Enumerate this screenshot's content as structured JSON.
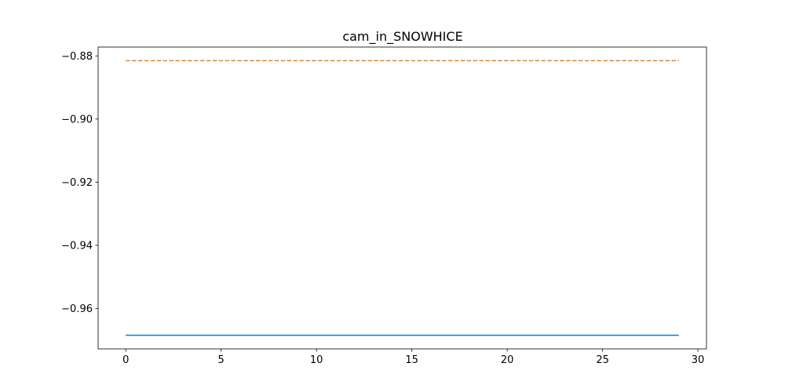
{
  "chart_data": {
    "type": "line",
    "title": "cam_in_SNOWHICE",
    "xlabel": "",
    "ylabel": "",
    "xlim": [
      -1.45,
      30.45
    ],
    "ylim": [
      -0.9728,
      -0.8772
    ],
    "x_ticks": [
      0,
      5,
      10,
      15,
      20,
      25,
      30
    ],
    "x_tick_labels": [
      "0",
      "5",
      "10",
      "15",
      "20",
      "25",
      "30"
    ],
    "y_ticks": [
      -0.96,
      -0.94,
      -0.92,
      -0.9,
      -0.88
    ],
    "y_tick_labels": [
      "−0.96",
      "−0.94",
      "−0.92",
      "−0.90",
      "−0.88"
    ],
    "grid": false,
    "legend": "none",
    "series": [
      {
        "color": "#1f77b4",
        "style": "solid",
        "x": [
          0,
          1,
          2,
          3,
          4,
          5,
          6,
          7,
          8,
          9,
          10,
          11,
          12,
          13,
          14,
          15,
          16,
          17,
          18,
          19,
          20,
          21,
          22,
          23,
          24,
          25,
          26,
          27,
          28,
          29
        ],
        "y": [
          -0.9685,
          -0.9685,
          -0.9685,
          -0.9685,
          -0.9685,
          -0.9685,
          -0.9685,
          -0.9685,
          -0.9685,
          -0.9685,
          -0.9685,
          -0.9685,
          -0.9685,
          -0.9685,
          -0.9685,
          -0.9685,
          -0.9685,
          -0.9685,
          -0.9685,
          -0.9685,
          -0.9685,
          -0.9685,
          -0.9685,
          -0.9685,
          -0.9685,
          -0.9685,
          -0.9685,
          -0.9685,
          -0.9685,
          -0.9685
        ]
      },
      {
        "color": "#ff7f0e",
        "style": "dashed",
        "x": [
          0,
          1,
          2,
          3,
          4,
          5,
          6,
          7,
          8,
          9,
          10,
          11,
          12,
          13,
          14,
          15,
          16,
          17,
          18,
          19,
          20,
          21,
          22,
          23,
          24,
          25,
          26,
          27,
          28,
          29
        ],
        "y": [
          -0.8815,
          -0.8815,
          -0.8815,
          -0.8815,
          -0.8815,
          -0.8815,
          -0.8815,
          -0.8815,
          -0.8815,
          -0.8815,
          -0.8815,
          -0.8815,
          -0.8815,
          -0.8815,
          -0.8815,
          -0.8815,
          -0.8815,
          -0.8815,
          -0.8815,
          -0.8815,
          -0.8815,
          -0.8815,
          -0.8815,
          -0.8815,
          -0.8815,
          -0.8815,
          -0.8815,
          -0.8815,
          -0.8815,
          -0.8815
        ]
      }
    ]
  }
}
